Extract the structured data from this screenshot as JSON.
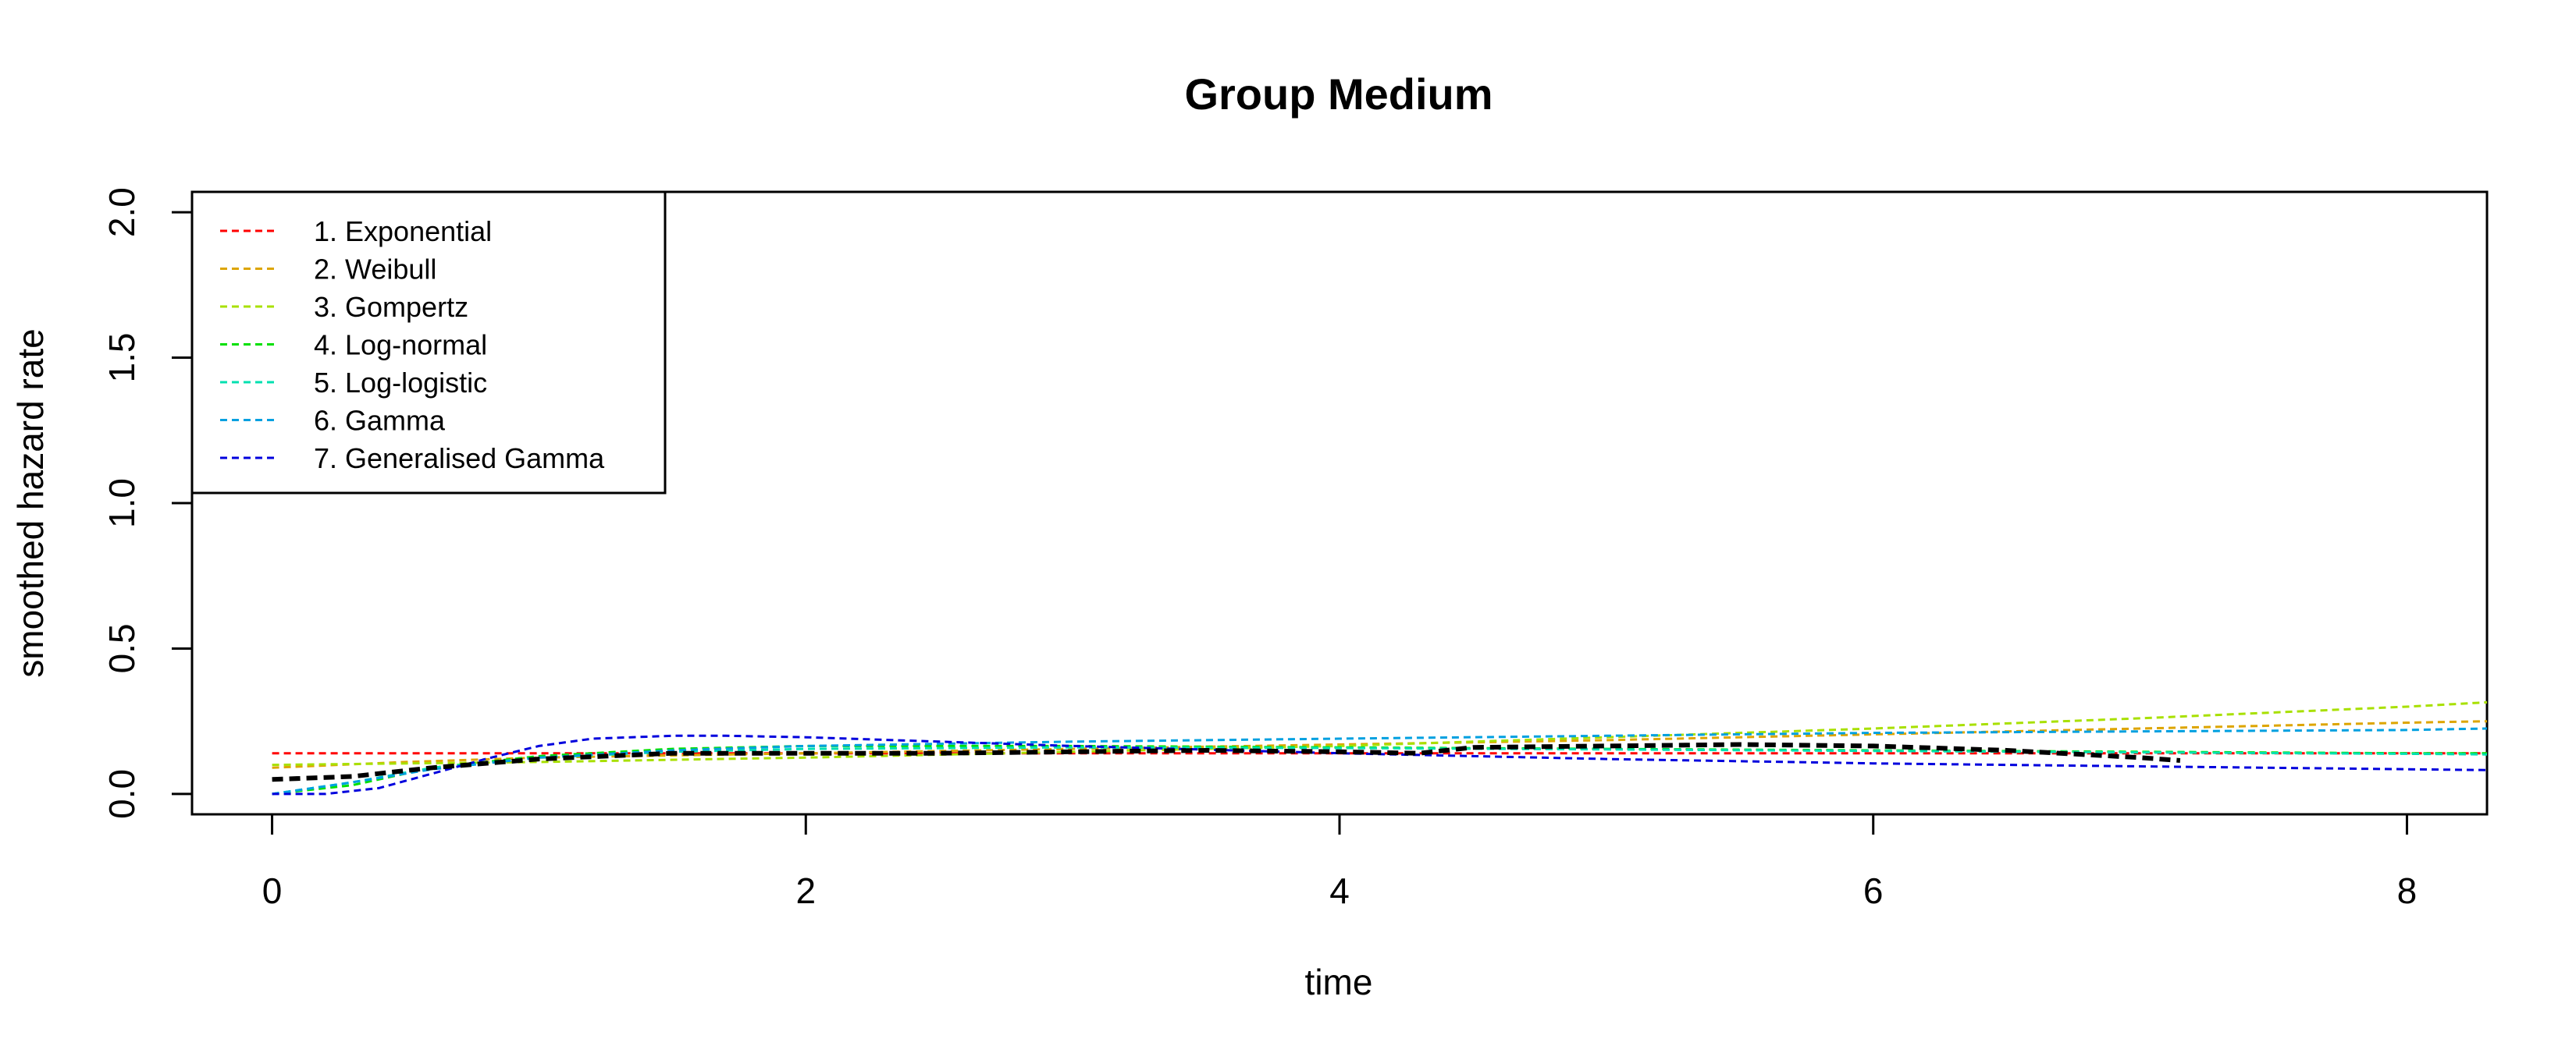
{
  "chart_data": {
    "type": "line",
    "title": "Group Medium",
    "xlabel": "time",
    "ylabel": "smoothed hazard rate",
    "xlim": [
      -0.3,
      8.3
    ],
    "ylim": [
      -0.07,
      2.07
    ],
    "xticks": [
      0,
      2,
      4,
      6,
      8
    ],
    "yticks": [
      0.0,
      0.5,
      1.0,
      1.5,
      2.0
    ],
    "ytick_labels": [
      "0.0",
      "0.5",
      "1.0",
      "1.5",
      "2.0"
    ],
    "legend_position": "top-left",
    "observed": {
      "color": "#000000",
      "x": [
        0,
        0.3,
        0.6,
        1.0,
        1.5,
        2.0,
        2.5,
        3.0,
        3.5,
        4.0,
        4.3,
        4.5,
        5.0,
        5.5,
        6.0,
        6.5,
        7.0,
        7.15
      ],
      "y": [
        0.05,
        0.06,
        0.09,
        0.12,
        0.14,
        0.14,
        0.14,
        0.145,
        0.15,
        0.145,
        0.14,
        0.16,
        0.165,
        0.17,
        0.165,
        0.15,
        0.125,
        0.115
      ]
    },
    "series": [
      {
        "name": "1. Exponential",
        "color": "#FF0000",
        "x": [
          0,
          1,
          2,
          3,
          4,
          5,
          6,
          7,
          8,
          8.3
        ],
        "y": [
          0.14,
          0.14,
          0.14,
          0.14,
          0.14,
          0.14,
          0.14,
          0.14,
          0.14,
          0.14
        ]
      },
      {
        "name": "2. Weibull",
        "color": "#DDA500",
        "x": [
          0,
          0.5,
          1,
          2,
          3,
          4,
          5,
          6,
          7,
          8,
          8.3
        ],
        "y": [
          0.09,
          0.11,
          0.125,
          0.14,
          0.155,
          0.17,
          0.185,
          0.205,
          0.225,
          0.245,
          0.25
        ]
      },
      {
        "name": "3. Gompertz",
        "color": "#A8E000",
        "x": [
          0,
          1,
          2,
          3,
          4,
          5,
          6,
          7,
          8,
          8.3
        ],
        "y": [
          0.1,
          0.11,
          0.125,
          0.145,
          0.165,
          0.195,
          0.225,
          0.26,
          0.3,
          0.315
        ]
      },
      {
        "name": "4. Log-normal",
        "color": "#00E000",
        "x": [
          0,
          0.3,
          0.6,
          1.0,
          1.5,
          2,
          3,
          4,
          5,
          6,
          7,
          8,
          8.3
        ],
        "y": [
          0.0,
          0.03,
          0.09,
          0.13,
          0.155,
          0.165,
          0.165,
          0.16,
          0.155,
          0.15,
          0.145,
          0.14,
          0.14
        ]
      },
      {
        "name": "5. Log-logistic",
        "color": "#00E0B0",
        "x": [
          0,
          0.3,
          0.6,
          1.0,
          1.5,
          2,
          3,
          4,
          5,
          6,
          7,
          8,
          8.3
        ],
        "y": [
          0.0,
          0.04,
          0.09,
          0.125,
          0.145,
          0.155,
          0.16,
          0.158,
          0.153,
          0.148,
          0.143,
          0.138,
          0.136
        ]
      },
      {
        "name": "6. Gamma",
        "color": "#00A0E0",
        "x": [
          0,
          0.3,
          0.6,
          1.0,
          1.5,
          2,
          3,
          4,
          5,
          6,
          7,
          8,
          8.3
        ],
        "y": [
          0.0,
          0.04,
          0.085,
          0.125,
          0.15,
          0.165,
          0.18,
          0.19,
          0.2,
          0.21,
          0.215,
          0.22,
          0.225
        ]
      },
      {
        "name": "7. Generalised Gamma",
        "color": "#0000DD",
        "x": [
          0,
          0.2,
          0.4,
          0.6,
          0.8,
          1.0,
          1.2,
          1.5,
          1.7,
          2.0,
          2.5,
          3.0,
          4.0,
          5.0,
          6.0,
          7.0,
          8.0,
          8.3
        ],
        "y": [
          0.0,
          0.0,
          0.02,
          0.07,
          0.12,
          0.165,
          0.19,
          0.2,
          0.2,
          0.195,
          0.18,
          0.165,
          0.14,
          0.12,
          0.105,
          0.095,
          0.085,
          0.082
        ]
      }
    ]
  }
}
